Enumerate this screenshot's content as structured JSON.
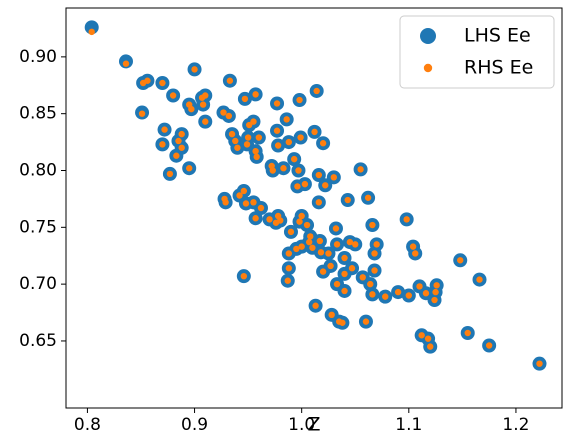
{
  "chart_data": {
    "type": "scatter",
    "x_label": "Z",
    "x": [
      0.804,
      0.836,
      0.852,
      0.856,
      0.851,
      0.87,
      0.872,
      0.87,
      0.88,
      0.883,
      0.885,
      0.888,
      0.888,
      0.877,
      0.895,
      0.897,
      0.895,
      0.9,
      0.907,
      0.91,
      0.908,
      0.91,
      0.927,
      0.932,
      0.933,
      0.935,
      0.938,
      0.94,
      0.928,
      0.929,
      0.942,
      0.946,
      0.947,
      0.951,
      0.95,
      0.949,
      0.957,
      0.955,
      0.957,
      0.958,
      0.96,
      0.948,
      0.955,
      0.957,
      0.962,
      0.946,
      0.97,
      0.972,
      0.973,
      0.977,
      0.977,
      0.978,
      0.976,
      0.978,
      0.98,
      0.983,
      0.986,
      0.988,
      0.988,
      0.988,
      0.99,
      0.993,
      0.996,
      0.997,
      0.998,
      0.999,
      0.998,
      1.0,
      0.995,
      1.0,
      1.003,
      1.005,
      1.007,
      1.008,
      1.01,
      1.012,
      1.014,
      1.016,
      1.016,
      1.017,
      1.018,
      1.02,
      1.02,
      1.022,
      1.025,
      1.027,
      1.028,
      1.03,
      1.032,
      1.033,
      1.033,
      1.035,
      1.038,
      1.04,
      1.04,
      1.04,
      1.043,
      1.045,
      1.047,
      1.05,
      1.055,
      1.057,
      1.06,
      1.062,
      1.064,
      1.066,
      1.066,
      1.068,
      1.068,
      1.07,
      1.078,
      1.09,
      1.098,
      1.1,
      1.104,
      1.106,
      1.11,
      1.112,
      1.116,
      1.118,
      1.12,
      1.124,
      1.125,
      1.126,
      1.148,
      1.155,
      1.166,
      1.175,
      1.222,
      0.987,
      1.013
    ],
    "series": [
      {
        "name": "LHS Ee",
        "color": "#1f77b4",
        "values": [
          0.926,
          0.896,
          0.877,
          0.879,
          0.851,
          0.877,
          0.836,
          0.823,
          0.866,
          0.813,
          0.826,
          0.832,
          0.82,
          0.797,
          0.858,
          0.854,
          0.802,
          0.889,
          0.864,
          0.866,
          0.858,
          0.843,
          0.851,
          0.848,
          0.879,
          0.832,
          0.826,
          0.82,
          0.775,
          0.772,
          0.778,
          0.782,
          0.863,
          0.84,
          0.829,
          0.823,
          0.867,
          0.843,
          0.817,
          0.812,
          0.829,
          0.771,
          0.772,
          0.758,
          0.767,
          0.707,
          0.757,
          0.804,
          0.8,
          0.859,
          0.835,
          0.822,
          0.754,
          0.76,
          0.756,
          0.802,
          0.845,
          0.825,
          0.727,
          0.714,
          0.746,
          0.81,
          0.786,
          0.8,
          0.862,
          0.829,
          0.755,
          0.76,
          0.731,
          0.733,
          0.788,
          0.752,
          0.737,
          0.742,
          0.732,
          0.834,
          0.87,
          0.796,
          0.772,
          0.738,
          0.728,
          0.824,
          0.711,
          0.787,
          0.727,
          0.716,
          0.673,
          0.794,
          0.749,
          0.735,
          0.7,
          0.667,
          0.666,
          0.723,
          0.709,
          0.694,
          0.774,
          0.737,
          0.714,
          0.735,
          0.801,
          0.706,
          0.667,
          0.776,
          0.7,
          0.752,
          0.691,
          0.727,
          0.712,
          0.735,
          0.689,
          0.693,
          0.757,
          0.69,
          0.733,
          0.727,
          0.698,
          0.655,
          0.692,
          0.652,
          0.645,
          0.686,
          0.693,
          0.699,
          0.721,
          0.657,
          0.704,
          0.646,
          0.63,
          0.703,
          0.681
        ]
      },
      {
        "name": "RHS Ee",
        "color": "#ff7f0e",
        "values": [
          0.922,
          0.894,
          0.877,
          0.879,
          0.85,
          0.877,
          0.836,
          0.823,
          0.866,
          0.813,
          0.826,
          0.832,
          0.82,
          0.797,
          0.858,
          0.854,
          0.802,
          0.889,
          0.864,
          0.866,
          0.858,
          0.843,
          0.851,
          0.848,
          0.879,
          0.832,
          0.826,
          0.82,
          0.775,
          0.772,
          0.778,
          0.782,
          0.863,
          0.84,
          0.829,
          0.823,
          0.867,
          0.843,
          0.817,
          0.812,
          0.829,
          0.771,
          0.772,
          0.758,
          0.767,
          0.707,
          0.757,
          0.804,
          0.8,
          0.859,
          0.835,
          0.822,
          0.754,
          0.76,
          0.756,
          0.802,
          0.845,
          0.825,
          0.727,
          0.714,
          0.746,
          0.81,
          0.786,
          0.8,
          0.862,
          0.829,
          0.755,
          0.76,
          0.731,
          0.733,
          0.788,
          0.752,
          0.737,
          0.742,
          0.732,
          0.834,
          0.87,
          0.796,
          0.772,
          0.738,
          0.728,
          0.824,
          0.711,
          0.787,
          0.727,
          0.716,
          0.673,
          0.794,
          0.749,
          0.735,
          0.7,
          0.667,
          0.666,
          0.723,
          0.709,
          0.694,
          0.774,
          0.737,
          0.714,
          0.735,
          0.801,
          0.706,
          0.667,
          0.776,
          0.7,
          0.752,
          0.691,
          0.727,
          0.712,
          0.735,
          0.689,
          0.693,
          0.757,
          0.69,
          0.733,
          0.727,
          0.698,
          0.655,
          0.692,
          0.652,
          0.645,
          0.686,
          0.693,
          0.699,
          0.721,
          0.657,
          0.704,
          0.646,
          0.63,
          0.703,
          0.681
        ]
      }
    ],
    "xlim": [
      0.78,
      1.243
    ],
    "ylim": [
      0.591,
      0.943
    ],
    "xticks": [
      0.8,
      0.9,
      {
        "value": 1,
        "label": "1.0"
      },
      1.1,
      1.2
    ],
    "yticks": [
      0.65,
      {
        "value": 0.7,
        "label": "0.70"
      },
      0.75,
      {
        "value": 0.8,
        "label": "0.80"
      },
      0.85,
      {
        "value": 0.9,
        "label": "0.90"
      }
    ],
    "legend": "upper right"
  }
}
